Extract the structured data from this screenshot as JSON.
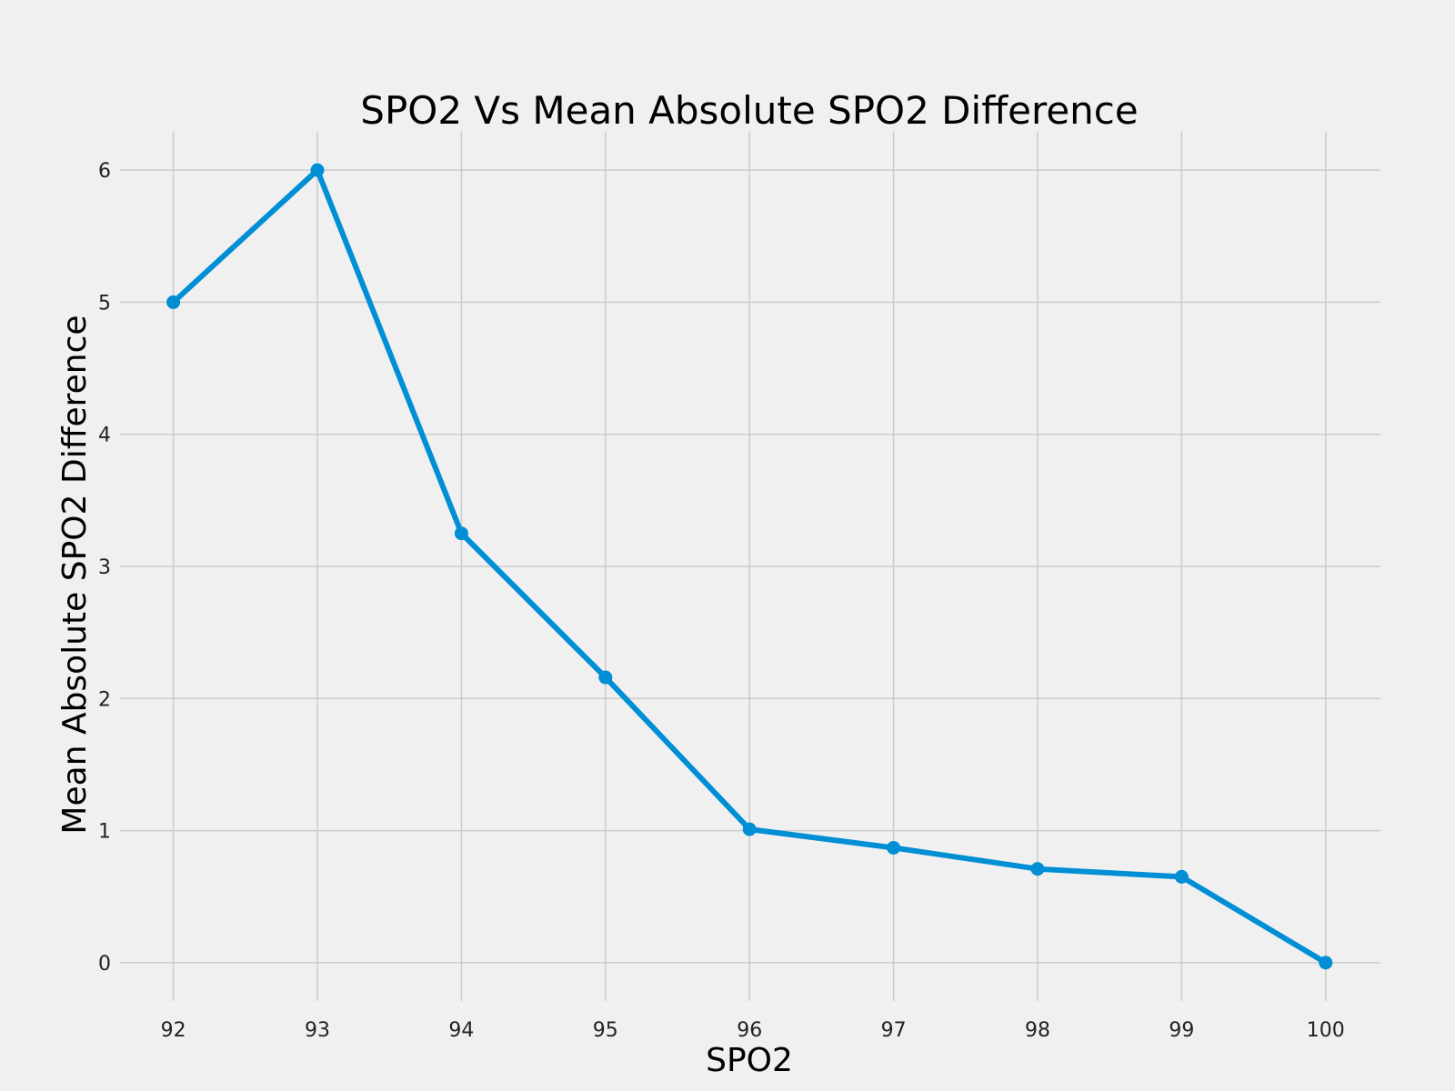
{
  "colors": {
    "background": "#f0f0f0",
    "grid": "#cbcbcb",
    "line": "#008fd5",
    "text": "#000000"
  },
  "chart_data": {
    "type": "line",
    "title": "SPO2 Vs Mean Absolute SPO2 Difference",
    "xlabel": "SPO2",
    "ylabel": "Mean Absolute SPO2 Difference",
    "grid": true,
    "x": [
      92,
      93,
      94,
      95,
      96,
      97,
      98,
      99,
      100
    ],
    "series": [
      {
        "values": [
          5.0,
          6.0,
          3.25,
          2.16,
          1.01,
          0.87,
          0.71,
          0.65,
          0.0
        ],
        "color": "#008fd5",
        "marker": "circle"
      }
    ],
    "xticks": [
      "92",
      "93",
      "94",
      "95",
      "96",
      "97",
      "98",
      "99",
      "100"
    ],
    "yticks": [
      "0",
      "1",
      "2",
      "3",
      "4",
      "5",
      "6"
    ],
    "xlim": [
      91.63,
      100.38
    ],
    "ylim": [
      -0.29,
      6.29
    ]
  }
}
